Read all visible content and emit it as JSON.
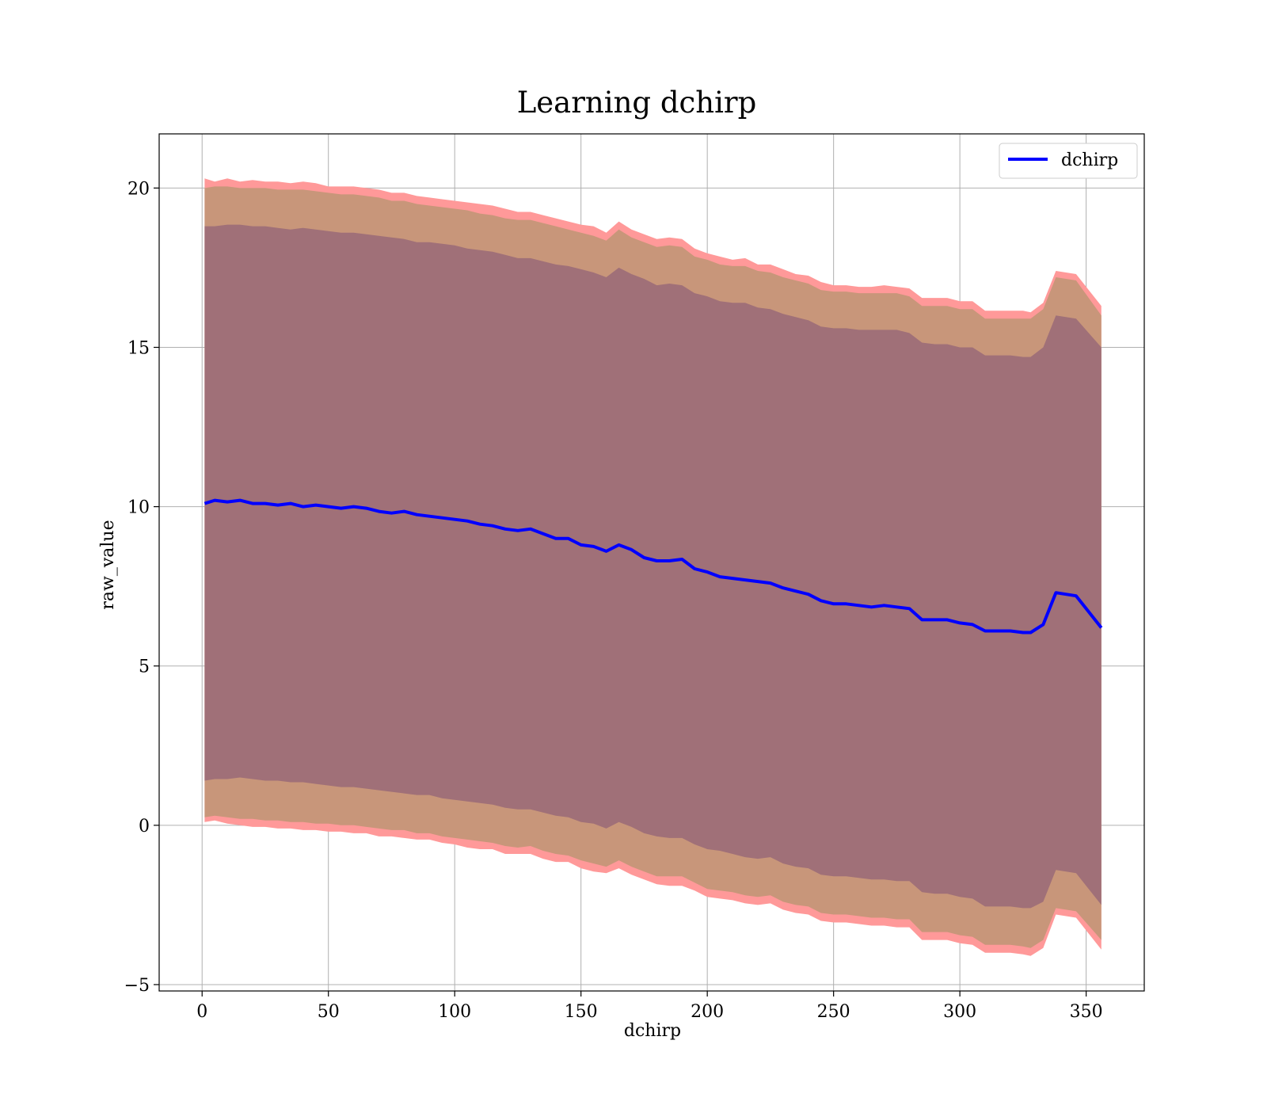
{
  "chart_data": {
    "type": "line",
    "title": "Learning dchirp",
    "xlabel": "dchirp",
    "ylabel": "raw_value",
    "xlim": [
      -17,
      373
    ],
    "ylim": [
      -5.2,
      21.7
    ],
    "x_ticks": [
      0,
      50,
      100,
      150,
      200,
      250,
      300,
      350
    ],
    "y_ticks": [
      -5,
      0,
      5,
      10,
      15,
      20
    ],
    "x_tick_labels": [
      "0",
      "50",
      "100",
      "150",
      "200",
      "250",
      "300",
      "350"
    ],
    "y_tick_labels": [
      "−5",
      "0",
      "5",
      "10",
      "15",
      "20"
    ],
    "grid": true,
    "legend_position": "top-right",
    "colors": {
      "line": "#0000ff",
      "outer_band": "#ff9999",
      "middle_band": "#c8967a",
      "inner_band": "#a07078",
      "grid": "#b0b0b0"
    },
    "series": [
      {
        "name": "dchirp",
        "x": [
          1,
          5,
          10,
          15,
          20,
          25,
          30,
          35,
          40,
          45,
          50,
          55,
          60,
          65,
          70,
          75,
          80,
          85,
          90,
          95,
          100,
          105,
          110,
          115,
          120,
          125,
          130,
          135,
          140,
          145,
          150,
          155,
          160,
          165,
          170,
          175,
          180,
          185,
          190,
          195,
          200,
          205,
          210,
          215,
          220,
          225,
          230,
          235,
          240,
          245,
          250,
          255,
          260,
          265,
          270,
          275,
          280,
          285,
          290,
          295,
          300,
          305,
          310,
          315,
          320,
          325,
          328,
          333,
          338,
          346,
          356
        ],
        "values": [
          10.1,
          10.2,
          10.15,
          10.2,
          10.1,
          10.1,
          10.05,
          10.1,
          10.0,
          10.05,
          10.0,
          9.95,
          10.0,
          9.95,
          9.85,
          9.8,
          9.85,
          9.75,
          9.7,
          9.65,
          9.6,
          9.55,
          9.45,
          9.4,
          9.3,
          9.25,
          9.3,
          9.15,
          9.0,
          9.0,
          8.8,
          8.75,
          8.6,
          8.8,
          8.65,
          8.4,
          8.3,
          8.3,
          8.35,
          8.05,
          7.95,
          7.8,
          7.75,
          7.7,
          7.65,
          7.6,
          7.45,
          7.35,
          7.25,
          7.05,
          6.95,
          6.95,
          6.9,
          6.85,
          6.9,
          6.85,
          6.8,
          6.45,
          6.45,
          6.45,
          6.35,
          6.3,
          6.1,
          6.1,
          6.1,
          6.05,
          6.05,
          6.3,
          7.3,
          7.2,
          6.2
        ],
        "bands": [
          {
            "name": "outer",
            "upper": [
              20.3,
              20.2,
              20.3,
              20.2,
              20.25,
              20.2,
              20.2,
              20.15,
              20.2,
              20.15,
              20.05,
              20.05,
              20.05,
              20.0,
              19.95,
              19.85,
              19.85,
              19.75,
              19.7,
              19.65,
              19.6,
              19.55,
              19.5,
              19.45,
              19.35,
              19.25,
              19.25,
              19.15,
              19.05,
              18.95,
              18.85,
              18.8,
              18.6,
              18.95,
              18.7,
              18.55,
              18.4,
              18.45,
              18.4,
              18.1,
              17.95,
              17.85,
              17.75,
              17.8,
              17.6,
              17.6,
              17.45,
              17.3,
              17.25,
              17.05,
              16.95,
              16.95,
              16.9,
              16.9,
              16.95,
              16.9,
              16.85,
              16.55,
              16.55,
              16.55,
              16.45,
              16.45,
              16.15,
              16.15,
              16.15,
              16.15,
              16.1,
              16.4,
              17.4,
              17.3,
              16.3
            ],
            "lower": [
              0.1,
              0.15,
              0.05,
              0.0,
              -0.05,
              -0.05,
              -0.1,
              -0.1,
              -0.15,
              -0.15,
              -0.2,
              -0.2,
              -0.25,
              -0.25,
              -0.35,
              -0.35,
              -0.4,
              -0.45,
              -0.45,
              -0.55,
              -0.6,
              -0.7,
              -0.75,
              -0.75,
              -0.9,
              -0.9,
              -0.9,
              -1.05,
              -1.15,
              -1.15,
              -1.35,
              -1.45,
              -1.5,
              -1.35,
              -1.55,
              -1.7,
              -1.85,
              -1.9,
              -1.9,
              -2.05,
              -2.25,
              -2.3,
              -2.35,
              -2.45,
              -2.5,
              -2.45,
              -2.65,
              -2.75,
              -2.8,
              -3.0,
              -3.05,
              -3.05,
              -3.1,
              -3.15,
              -3.15,
              -3.2,
              -3.2,
              -3.6,
              -3.6,
              -3.6,
              -3.7,
              -3.75,
              -4.0,
              -4.0,
              -4.0,
              -4.05,
              -4.1,
              -3.85,
              -2.8,
              -2.9,
              -3.9
            ]
          },
          {
            "name": "middle",
            "upper": [
              20.0,
              20.05,
              20.05,
              20.0,
              20.0,
              20.0,
              19.95,
              19.95,
              19.95,
              19.9,
              19.85,
              19.8,
              19.8,
              19.75,
              19.7,
              19.6,
              19.6,
              19.5,
              19.45,
              19.4,
              19.35,
              19.3,
              19.2,
              19.15,
              19.05,
              19.0,
              19.0,
              18.9,
              18.8,
              18.7,
              18.6,
              18.5,
              18.35,
              18.7,
              18.45,
              18.3,
              18.15,
              18.2,
              18.15,
              17.85,
              17.75,
              17.6,
              17.55,
              17.55,
              17.4,
              17.35,
              17.2,
              17.1,
              17.0,
              16.8,
              16.75,
              16.75,
              16.7,
              16.7,
              16.7,
              16.7,
              16.6,
              16.3,
              16.3,
              16.3,
              16.2,
              16.2,
              15.9,
              15.9,
              15.9,
              15.9,
              15.9,
              16.2,
              17.2,
              17.1,
              16.0
            ],
            "lower": [
              0.25,
              0.3,
              0.25,
              0.2,
              0.2,
              0.15,
              0.15,
              0.1,
              0.1,
              0.05,
              0.05,
              0.0,
              0.0,
              -0.05,
              -0.1,
              -0.15,
              -0.15,
              -0.25,
              -0.25,
              -0.35,
              -0.4,
              -0.45,
              -0.5,
              -0.55,
              -0.65,
              -0.7,
              -0.65,
              -0.8,
              -0.9,
              -0.95,
              -1.1,
              -1.2,
              -1.3,
              -1.1,
              -1.3,
              -1.45,
              -1.6,
              -1.6,
              -1.6,
              -1.8,
              -2.0,
              -2.05,
              -2.1,
              -2.2,
              -2.25,
              -2.2,
              -2.4,
              -2.5,
              -2.55,
              -2.75,
              -2.8,
              -2.8,
              -2.85,
              -2.9,
              -2.9,
              -2.95,
              -2.95,
              -3.35,
              -3.35,
              -3.35,
              -3.45,
              -3.5,
              -3.75,
              -3.75,
              -3.75,
              -3.8,
              -3.85,
              -3.6,
              -2.6,
              -2.7,
              -3.6
            ]
          },
          {
            "name": "inner",
            "upper": [
              18.8,
              18.8,
              18.85,
              18.85,
              18.8,
              18.8,
              18.75,
              18.7,
              18.75,
              18.7,
              18.65,
              18.6,
              18.6,
              18.55,
              18.5,
              18.45,
              18.4,
              18.3,
              18.3,
              18.25,
              18.2,
              18.1,
              18.05,
              18.0,
              17.9,
              17.8,
              17.8,
              17.7,
              17.6,
              17.55,
              17.45,
              17.35,
              17.2,
              17.5,
              17.3,
              17.15,
              16.95,
              17.0,
              16.95,
              16.7,
              16.6,
              16.45,
              16.4,
              16.4,
              16.25,
              16.2,
              16.05,
              15.95,
              15.85,
              15.65,
              15.6,
              15.6,
              15.55,
              15.55,
              15.55,
              15.55,
              15.45,
              15.15,
              15.1,
              15.1,
              15.0,
              15.0,
              14.75,
              14.75,
              14.75,
              14.7,
              14.7,
              15.0,
              16.0,
              15.9,
              15.0
            ],
            "lower": [
              1.4,
              1.45,
              1.45,
              1.5,
              1.45,
              1.4,
              1.4,
              1.35,
              1.35,
              1.3,
              1.25,
              1.2,
              1.2,
              1.15,
              1.1,
              1.05,
              1.0,
              0.95,
              0.95,
              0.85,
              0.8,
              0.75,
              0.7,
              0.65,
              0.55,
              0.5,
              0.5,
              0.4,
              0.3,
              0.25,
              0.1,
              0.05,
              -0.1,
              0.1,
              -0.05,
              -0.25,
              -0.35,
              -0.4,
              -0.4,
              -0.6,
              -0.75,
              -0.8,
              -0.9,
              -1.0,
              -1.05,
              -1.0,
              -1.2,
              -1.3,
              -1.35,
              -1.55,
              -1.6,
              -1.6,
              -1.65,
              -1.7,
              -1.7,
              -1.75,
              -1.75,
              -2.1,
              -2.15,
              -2.15,
              -2.25,
              -2.3,
              -2.55,
              -2.55,
              -2.55,
              -2.6,
              -2.6,
              -2.4,
              -1.4,
              -1.5,
              -2.5
            ]
          }
        ]
      }
    ]
  }
}
